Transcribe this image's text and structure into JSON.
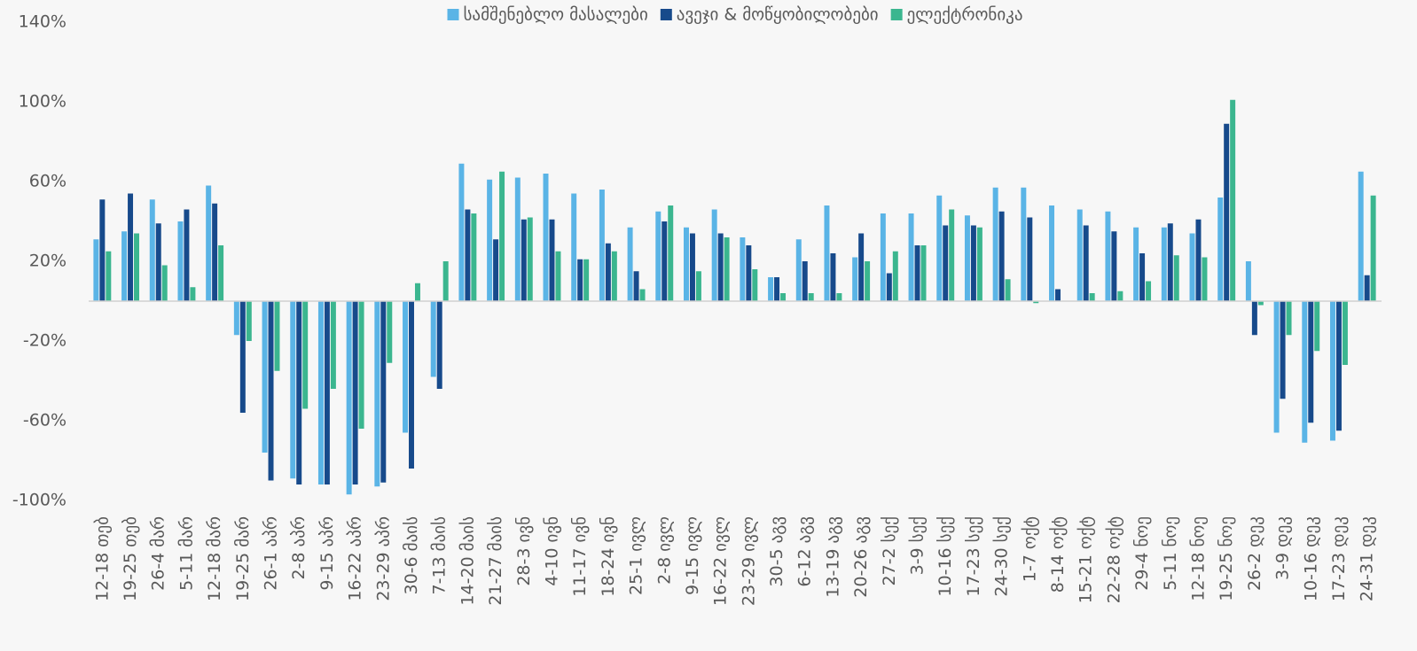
{
  "chart_data": {
    "type": "bar",
    "categories": [
      "12-18 თებ",
      "19-25 თებ",
      "26-4 მარ",
      "5-11 მარ",
      "12-18 მარ",
      "19-25 მარ",
      "26-1 აპრ",
      "2-8 აპრ",
      "9-15 აპრ",
      "16-22 აპრ",
      "23-29 აპრ",
      "30-6 მაის",
      "7-13 მაის",
      "14-20 მაის",
      "21-27 მაის",
      "28-3 ივნ",
      "4-10 ივნ",
      "11-17 ივნ",
      "18-24 ივნ",
      "25-1 ივლ",
      "2-8 ივლ",
      "9-15 ივლ",
      "16-22 ივლ",
      "23-29 ივლ",
      "30-5 აგვ",
      "6-12 აგვ",
      "13-19 აგვ",
      "20-26 აგვ",
      "27-2 სექ",
      "3-9 სექ",
      "10-16 სექ",
      "17-23 სექ",
      "24-30 სექ",
      "1-7 ოქტ",
      "8-14 ოქტ",
      "15-21 ოქტ",
      "22-28 ოქტ",
      "29-4 ნოე",
      "5-11 ნოე",
      "12-18 ნოე",
      "19-25 ნოე",
      "26-2 დეკ",
      "3-9 დეკ",
      "10-16 დეკ",
      "17-23 დეკ",
      "24-31 დეკ"
    ],
    "series": [
      {
        "name": "სამშენებლო მასალები",
        "color": "#5ab4e6",
        "values": [
          31,
          35,
          51,
          40,
          58,
          -17,
          -76,
          -89,
          -92,
          -97,
          -93,
          -66,
          -38,
          69,
          61,
          62,
          64,
          54,
          56,
          37,
          45,
          37,
          46,
          32,
          12,
          31,
          48,
          22,
          44,
          44,
          53,
          43,
          57,
          57,
          48,
          46,
          45,
          37,
          37,
          34,
          52,
          20,
          -66,
          -71,
          -70,
          65
        ]
      },
      {
        "name": "ავეჯი & მოწყობილობები",
        "color": "#174a8b",
        "values": [
          51,
          54,
          39,
          46,
          49,
          -56,
          -90,
          -92,
          -92,
          -92,
          -91,
          -84,
          -44,
          46,
          31,
          41,
          41,
          21,
          29,
          15,
          40,
          34,
          34,
          28,
          12,
          20,
          24,
          34,
          14,
          28,
          38,
          38,
          45,
          42,
          6,
          38,
          35,
          24,
          39,
          41,
          89,
          -17,
          -49,
          -61,
          -65,
          13
        ]
      },
      {
        "name": "ელექტრონიკა",
        "color": "#3bb68f",
        "values": [
          25,
          34,
          18,
          7,
          28,
          -20,
          -35,
          -54,
          -44,
          -64,
          -31,
          9,
          20,
          44,
          65,
          42,
          25,
          21,
          25,
          6,
          48,
          15,
          32,
          16,
          4,
          4,
          4,
          20,
          25,
          28,
          46,
          37,
          11,
          -1,
          0,
          4,
          5,
          10,
          23,
          22,
          101,
          -2,
          -17,
          -25,
          -32,
          53
        ]
      }
    ],
    "ylim": [
      -100,
      140
    ],
    "yticks": [
      {
        "value": -100,
        "label": "-100%"
      },
      {
        "value": -60,
        "label": "-60%"
      },
      {
        "value": -20,
        "label": "-20%"
      },
      {
        "value": 20,
        "label": "20%"
      },
      {
        "value": 60,
        "label": "60%"
      },
      {
        "value": 100,
        "label": "100%"
      },
      {
        "value": 140,
        "label": "140%"
      }
    ],
    "legend": "top"
  }
}
